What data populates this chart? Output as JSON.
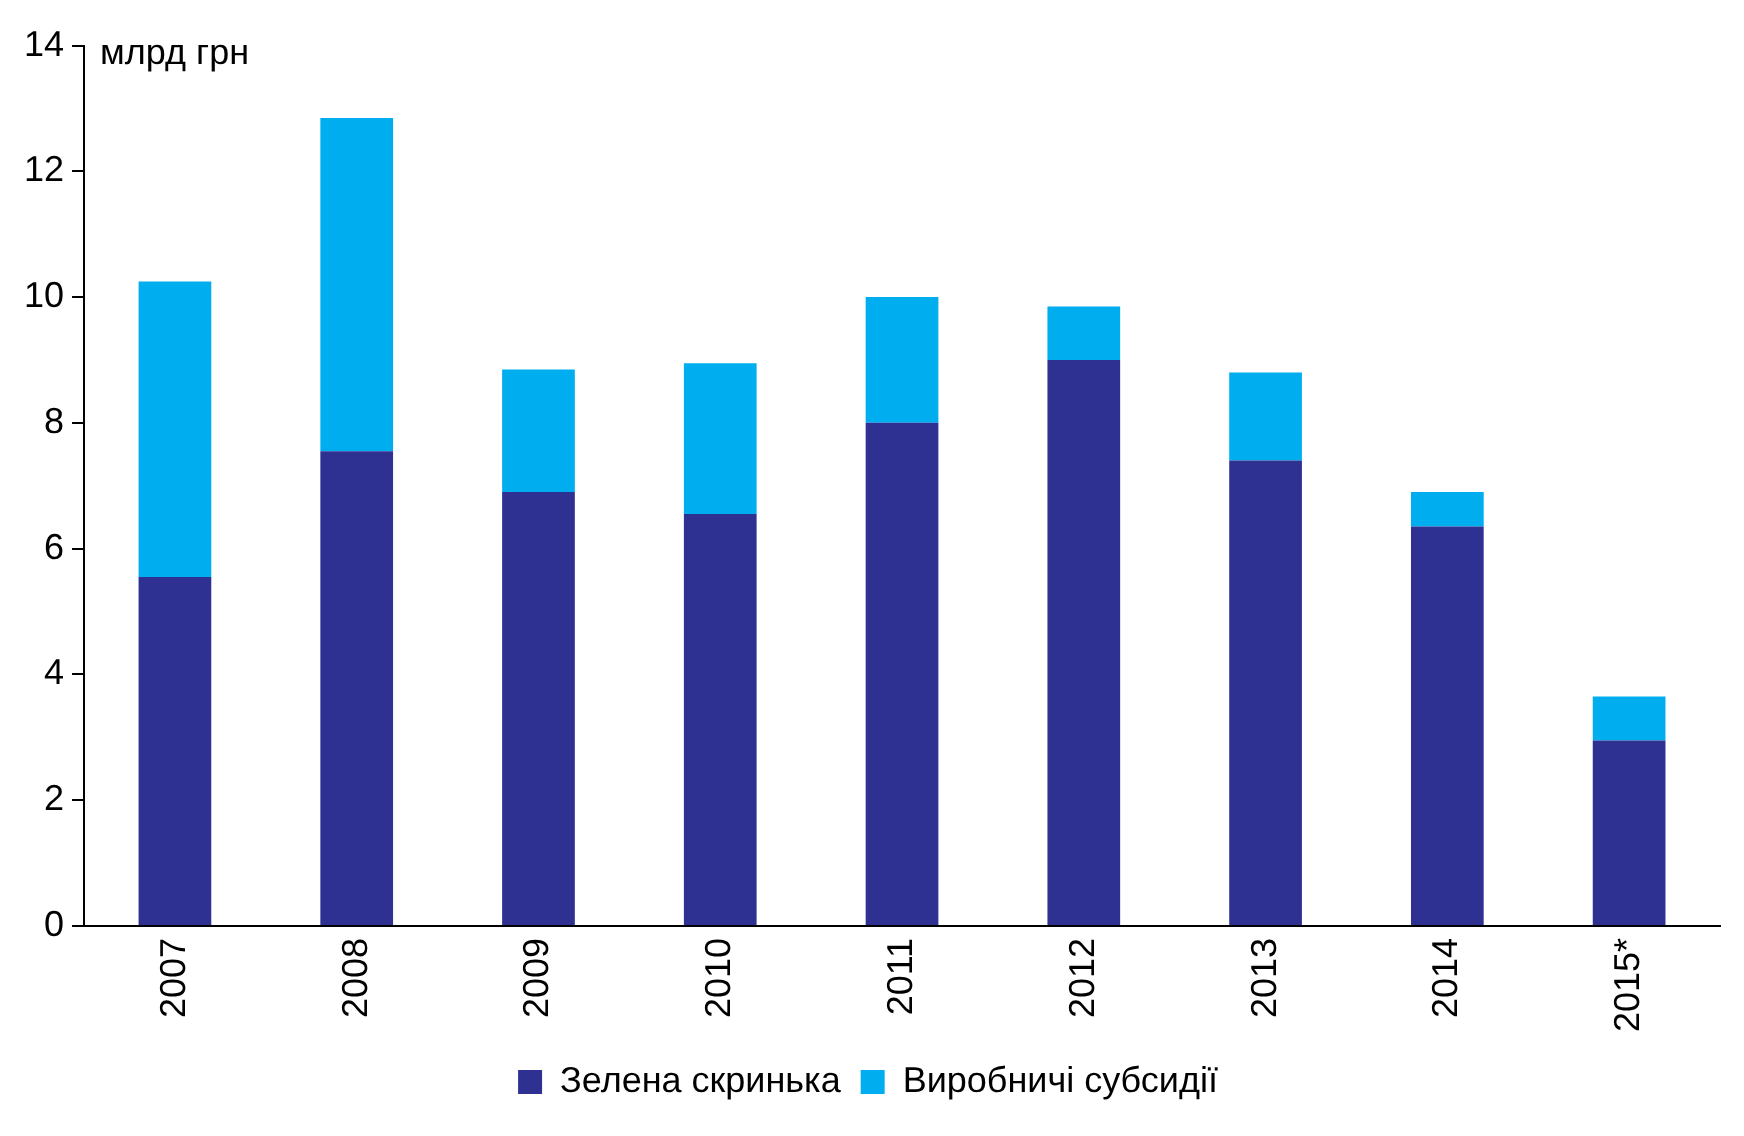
{
  "chart_data": {
    "type": "bar",
    "stacked": true,
    "ylabel": "млрд грн",
    "categories": [
      "2007",
      "2008",
      "2009",
      "2010",
      "2011",
      "2012",
      "2013",
      "2014",
      "2015*"
    ],
    "series": [
      {
        "name": "Зелена скринька",
        "color": "#2e3192",
        "values": [
          5.55,
          7.55,
          6.9,
          6.55,
          8.0,
          9.0,
          7.4,
          6.35,
          2.95
        ]
      },
      {
        "name": "Виробничі субсидії",
        "color": "#00aeef",
        "values": [
          4.7,
          5.3,
          1.95,
          2.4,
          2.0,
          0.85,
          1.4,
          0.55,
          0.7
        ]
      }
    ],
    "ylim": [
      0,
      14
    ],
    "yticks": [
      0,
      2,
      4,
      6,
      8,
      10,
      12,
      14
    ],
    "grid": false,
    "legend": "bottom"
  }
}
